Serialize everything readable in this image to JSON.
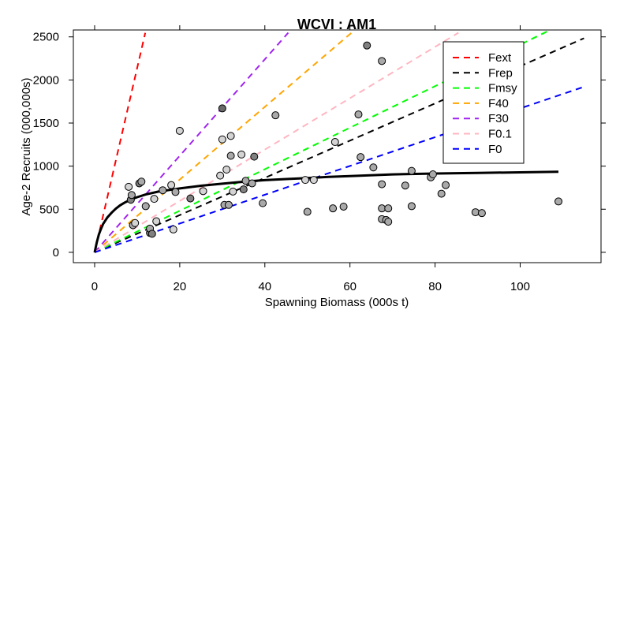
{
  "chart_data": {
    "type": "scatter",
    "title": "WCVI : AM1",
    "xlabel": "Spawning Biomass (000s t)",
    "ylabel": "Age-2 Recruits (000,000s)",
    "xlim": [
      -5,
      119
    ],
    "ylim": [
      -120,
      2580
    ],
    "x_ticks": [
      0,
      20,
      40,
      60,
      80,
      100
    ],
    "y_ticks": [
      0,
      500,
      1000,
      1500,
      2000,
      2500
    ],
    "x_tick_labels": [
      "0",
      "20",
      "40",
      "60",
      "80",
      100
    ],
    "y_tick_labels": [
      "0",
      "500",
      "1000",
      "1500",
      "2000",
      "2500"
    ],
    "grid": false,
    "legend_position": "top-right",
    "stock_recruit_curve": {
      "color": "#000000",
      "points": [
        [
          0.0,
          0
        ],
        [
          0.5,
          115
        ],
        [
          1,
          209
        ],
        [
          1.5,
          274
        ],
        [
          2,
          330
        ],
        [
          3,
          405
        ],
        [
          4,
          460
        ],
        [
          5,
          508
        ],
        [
          6,
          545
        ],
        [
          7,
          575
        ],
        [
          8,
          600
        ],
        [
          9,
          622
        ],
        [
          10,
          640
        ],
        [
          12,
          671
        ],
        [
          15,
          705
        ],
        [
          17,
          719
        ],
        [
          20,
          741
        ],
        [
          25,
          772
        ],
        [
          30,
          796
        ],
        [
          35,
          819
        ],
        [
          40,
          837
        ],
        [
          45,
          850
        ],
        [
          50,
          862
        ],
        [
          55,
          875
        ],
        [
          60,
          885
        ],
        [
          70,
          904
        ],
        [
          80,
          914
        ],
        [
          90,
          922
        ],
        [
          100,
          928
        ],
        [
          109,
          935
        ]
      ]
    },
    "reference_lines": [
      {
        "name": "Fext",
        "color": "#ff0000",
        "slope": 214,
        "x_end": 11.9
      },
      {
        "name": "Frep",
        "color": "#000000",
        "slope": 21.6,
        "x_end": 115
      },
      {
        "name": "Fmsy",
        "color": "#00ff00",
        "slope": 24.1,
        "x_end": 109
      },
      {
        "name": "F40",
        "color": "#ffa500",
        "slope": 42.2,
        "x_end": 60.3
      },
      {
        "name": "F30",
        "color": "#a020f0",
        "slope": 56.0,
        "x_end": 45.5
      },
      {
        "name": "F0.1",
        "color": "#ffb6c1",
        "slope": 29.8,
        "x_end": 85.5
      },
      {
        "name": "F0",
        "color": "#0000ff",
        "slope": 16.7,
        "x_end": 115
      }
    ],
    "points": [
      {
        "x": 8,
        "y": 760,
        "shade": "#d3d3d3"
      },
      {
        "x": 8.5,
        "y": 610,
        "shade": "#808080"
      },
      {
        "x": 8.7,
        "y": 665,
        "shade": "#a9a9a9"
      },
      {
        "x": 9,
        "y": 315,
        "shade": "#a9a9a9"
      },
      {
        "x": 9.5,
        "y": 340,
        "shade": "#d3d3d3"
      },
      {
        "x": 10.5,
        "y": 800,
        "shade": "#808080"
      },
      {
        "x": 11,
        "y": 820,
        "shade": "#a9a9a9"
      },
      {
        "x": 12,
        "y": 535,
        "shade": "#a9a9a9"
      },
      {
        "x": 13,
        "y": 225,
        "shade": "#808080"
      },
      {
        "x": 13,
        "y": 275,
        "shade": "#a9a9a9"
      },
      {
        "x": 13.5,
        "y": 215,
        "shade": "#808080"
      },
      {
        "x": 14,
        "y": 620,
        "shade": "#d3d3d3"
      },
      {
        "x": 14.5,
        "y": 360,
        "shade": "#d3d3d3"
      },
      {
        "x": 16,
        "y": 720,
        "shade": "#a9a9a9"
      },
      {
        "x": 18,
        "y": 780,
        "shade": "#d3d3d3"
      },
      {
        "x": 18.5,
        "y": 265,
        "shade": "#d3d3d3"
      },
      {
        "x": 19,
        "y": 700,
        "shade": "#a9a9a9"
      },
      {
        "x": 20,
        "y": 1410,
        "shade": "#d3d3d3"
      },
      {
        "x": 22.5,
        "y": 625,
        "shade": "#808080"
      },
      {
        "x": 25.5,
        "y": 710,
        "shade": "#d3d3d3"
      },
      {
        "x": 29.5,
        "y": 890,
        "shade": "#d3d3d3"
      },
      {
        "x": 30,
        "y": 1310,
        "shade": "#d3d3d3"
      },
      {
        "x": 30,
        "y": 1670,
        "shade": "#696969"
      },
      {
        "x": 30.5,
        "y": 550,
        "shade": "#a9a9a9"
      },
      {
        "x": 31,
        "y": 960,
        "shade": "#d3d3d3"
      },
      {
        "x": 31.5,
        "y": 550,
        "shade": "#a9a9a9"
      },
      {
        "x": 32,
        "y": 1120,
        "shade": "#a9a9a9"
      },
      {
        "x": 32,
        "y": 1350,
        "shade": "#d3d3d3"
      },
      {
        "x": 32.5,
        "y": 705,
        "shade": "#d3d3d3"
      },
      {
        "x": 34.5,
        "y": 1135,
        "shade": "#d3d3d3"
      },
      {
        "x": 35,
        "y": 730,
        "shade": "#808080"
      },
      {
        "x": 35.5,
        "y": 830,
        "shade": "#a9a9a9"
      },
      {
        "x": 37,
        "y": 800,
        "shade": "#a9a9a9"
      },
      {
        "x": 37.5,
        "y": 1110,
        "shade": "#808080"
      },
      {
        "x": 39.5,
        "y": 570,
        "shade": "#a9a9a9"
      },
      {
        "x": 42.5,
        "y": 1590,
        "shade": "#a9a9a9"
      },
      {
        "x": 49.5,
        "y": 840,
        "shade": "#d3d3d3"
      },
      {
        "x": 50,
        "y": 470,
        "shade": "#a9a9a9"
      },
      {
        "x": 51.5,
        "y": 840,
        "shade": "#d3d3d3"
      },
      {
        "x": 56,
        "y": 510,
        "shade": "#a9a9a9"
      },
      {
        "x": 56.5,
        "y": 1280,
        "shade": "#d3d3d3"
      },
      {
        "x": 58.5,
        "y": 530,
        "shade": "#a9a9a9"
      },
      {
        "x": 62,
        "y": 1600,
        "shade": "#a9a9a9"
      },
      {
        "x": 62.5,
        "y": 1105,
        "shade": "#a9a9a9"
      },
      {
        "x": 64,
        "y": 2400,
        "shade": "#808080"
      },
      {
        "x": 65.5,
        "y": 985,
        "shade": "#a9a9a9"
      },
      {
        "x": 67.5,
        "y": 2220,
        "shade": "#a9a9a9"
      },
      {
        "x": 67.5,
        "y": 790,
        "shade": "#a9a9a9"
      },
      {
        "x": 67.5,
        "y": 510,
        "shade": "#a9a9a9"
      },
      {
        "x": 67.5,
        "y": 385,
        "shade": "#a9a9a9"
      },
      {
        "x": 68.5,
        "y": 375,
        "shade": "#a9a9a9"
      },
      {
        "x": 69,
        "y": 355,
        "shade": "#a9a9a9"
      },
      {
        "x": 69,
        "y": 510,
        "shade": "#a9a9a9"
      },
      {
        "x": 73,
        "y": 775,
        "shade": "#a9a9a9"
      },
      {
        "x": 74.5,
        "y": 945,
        "shade": "#a9a9a9"
      },
      {
        "x": 74.5,
        "y": 535,
        "shade": "#a9a9a9"
      },
      {
        "x": 79,
        "y": 870,
        "shade": "#a9a9a9"
      },
      {
        "x": 79.5,
        "y": 905,
        "shade": "#a9a9a9"
      },
      {
        "x": 81.5,
        "y": 680,
        "shade": "#a9a9a9"
      },
      {
        "x": 82.5,
        "y": 780,
        "shade": "#a9a9a9"
      },
      {
        "x": 89.5,
        "y": 465,
        "shade": "#a9a9a9"
      },
      {
        "x": 91,
        "y": 455,
        "shade": "#a9a9a9"
      },
      {
        "x": 109,
        "y": 590,
        "shade": "#a9a9a9"
      }
    ]
  }
}
